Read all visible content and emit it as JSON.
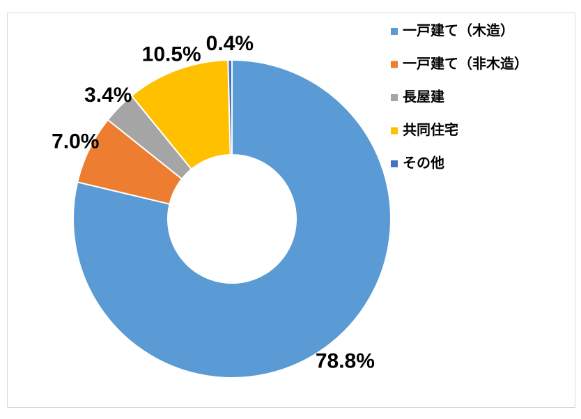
{
  "chart_data": {
    "type": "donut",
    "categories": [
      "一戸建て（木造）",
      "一戸建て（非木造）",
      "長屋建",
      "共同住宅",
      "その他"
    ],
    "values": [
      78.8,
      7.0,
      3.4,
      10.5,
      0.4
    ],
    "value_labels": [
      "78.8%",
      "7.0%",
      "3.4%",
      "10.5%",
      "0.4%"
    ],
    "colors": [
      "#5b9bd5",
      "#ed7d31",
      "#a5a5a5",
      "#ffc000",
      "#4472c4"
    ],
    "legend": "right"
  }
}
